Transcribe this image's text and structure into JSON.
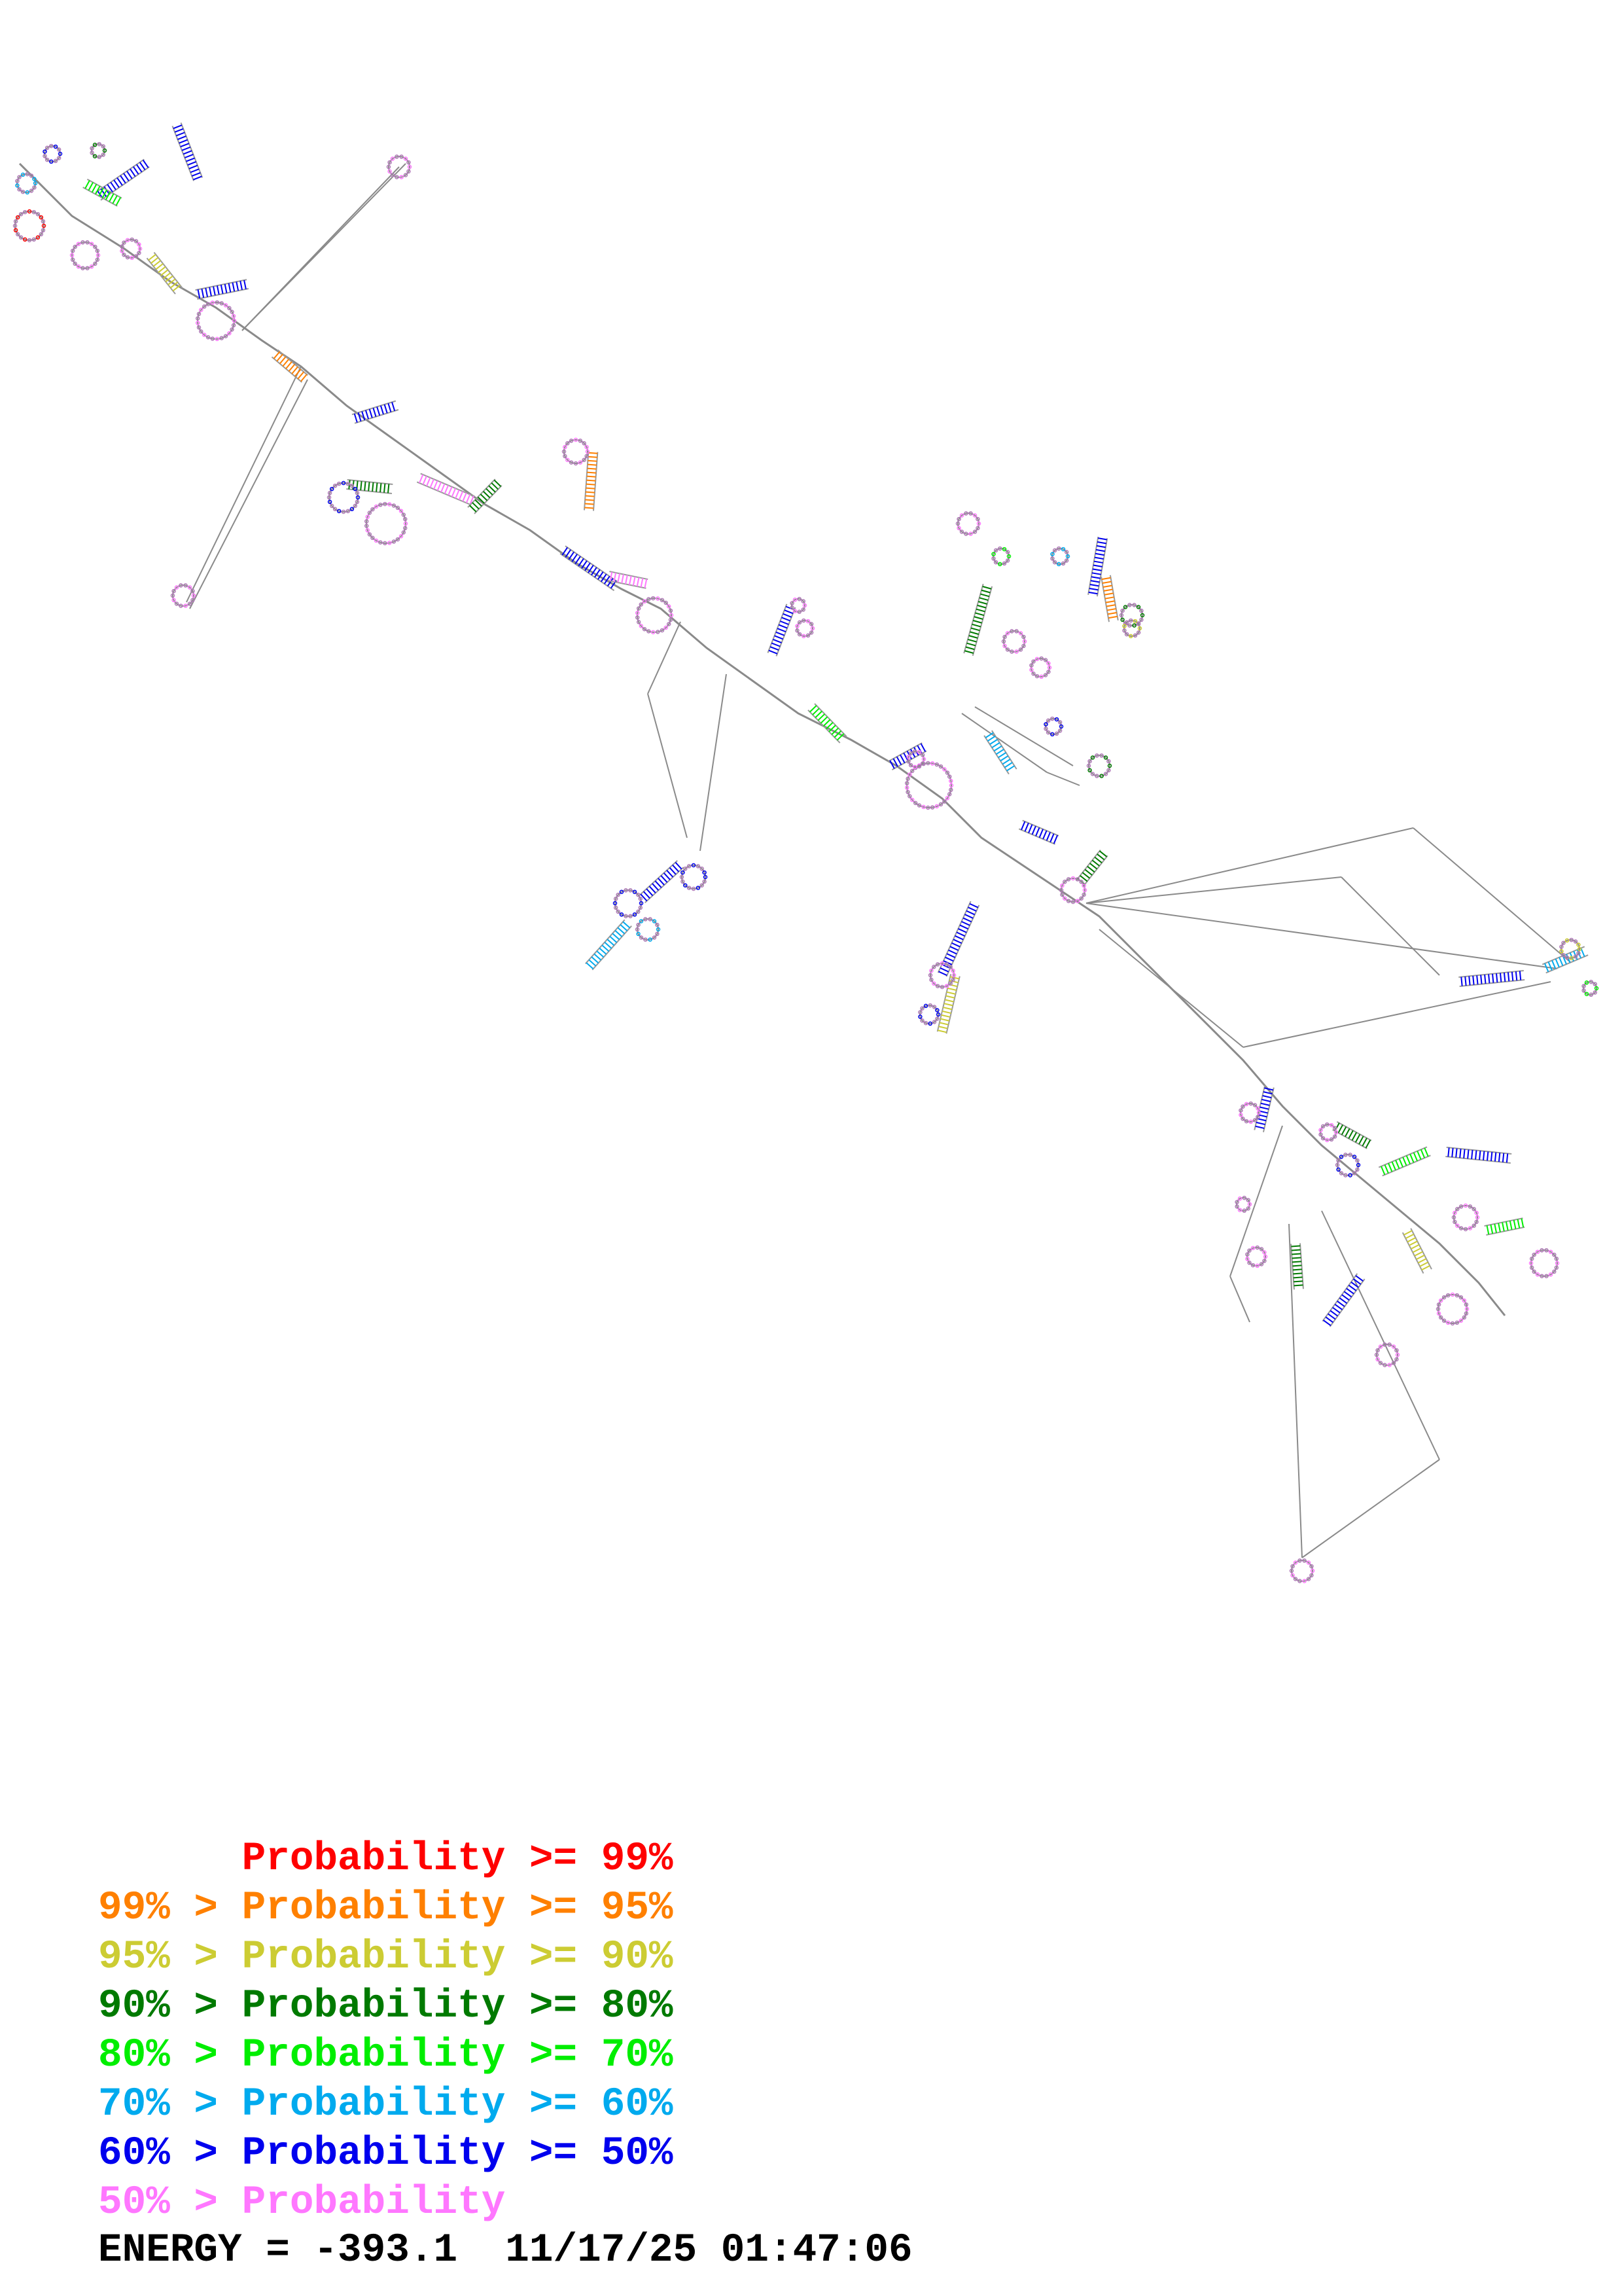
{
  "legend": [
    {
      "text": "      Probability >= 99%",
      "color": "#ff0000"
    },
    {
      "text": "99% > Probability >= 95%",
      "color": "#ff8000"
    },
    {
      "text": "95% > Probability >= 90%",
      "color": "#cccc33"
    },
    {
      "text": "90% > Probability >= 80%",
      "color": "#007a00"
    },
    {
      "text": "80% > Probability >= 70%",
      "color": "#00ee00"
    },
    {
      "text": "70% > Probability >= 60%",
      "color": "#00aaee"
    },
    {
      "text": "60% > Probability >= 50%",
      "color": "#0000ee"
    },
    {
      "text": "50% > Probability",
      "color": "#ff77ff"
    }
  ],
  "footer": {
    "energy_text": "ENERGY = -393.1  11/17/25 01:47:06"
  },
  "colors": {
    "backbone": "#8a8a8a",
    "base_default": "#b07ab8",
    "stem_pair": "#9a9a9a"
  }
}
